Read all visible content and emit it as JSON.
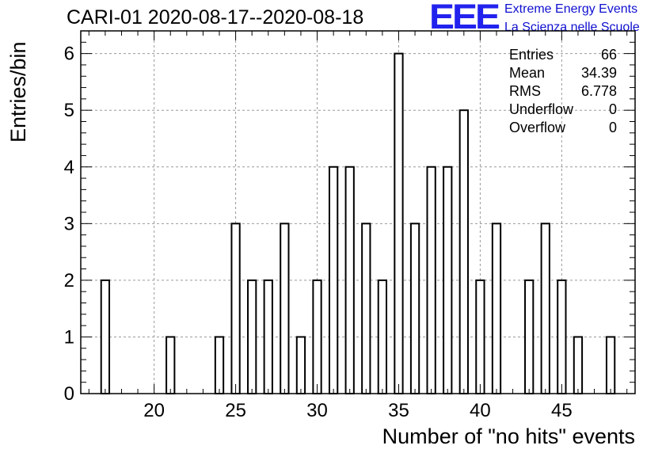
{
  "header": {
    "title": "CARI-01 2020-08-17--2020-08-18",
    "logo_text": "EEE",
    "logo_line1": "Extreme Energy Events",
    "logo_line2": "La Scienza nelle Scuole"
  },
  "stats": {
    "rows": [
      {
        "key": "Entries",
        "value": "66"
      },
      {
        "key": "Mean",
        "value": "34.39"
      },
      {
        "key": "RMS",
        "value": "6.778"
      },
      {
        "key": "Underflow",
        "value": "0"
      },
      {
        "key": "Overflow",
        "value": "0"
      }
    ]
  },
  "chart_data": {
    "type": "bar",
    "title": "CARI-01 2020-08-17--2020-08-18",
    "xlabel": "Number of \"no hits\" events",
    "ylabel": "Entries/bin",
    "xlim": [
      15.5,
      49.5
    ],
    "ylim": [
      0,
      6.4
    ],
    "bin_width": 0.5,
    "grid": true,
    "x_ticks": [
      20,
      25,
      30,
      35,
      40,
      45
    ],
    "y_ticks": [
      0,
      1,
      2,
      3,
      4,
      5,
      6
    ],
    "bins": [
      {
        "x": 17,
        "count": 2
      },
      {
        "x": 21,
        "count": 1
      },
      {
        "x": 24,
        "count": 1
      },
      {
        "x": 25,
        "count": 3
      },
      {
        "x": 26,
        "count": 2
      },
      {
        "x": 27,
        "count": 2
      },
      {
        "x": 28,
        "count": 3
      },
      {
        "x": 29,
        "count": 1
      },
      {
        "x": 30,
        "count": 2
      },
      {
        "x": 31,
        "count": 4
      },
      {
        "x": 32,
        "count": 4
      },
      {
        "x": 33,
        "count": 3
      },
      {
        "x": 34,
        "count": 2
      },
      {
        "x": 35,
        "count": 6
      },
      {
        "x": 36,
        "count": 3
      },
      {
        "x": 37,
        "count": 4
      },
      {
        "x": 38,
        "count": 4
      },
      {
        "x": 39,
        "count": 5
      },
      {
        "x": 40,
        "count": 2
      },
      {
        "x": 41,
        "count": 3
      },
      {
        "x": 43,
        "count": 2
      },
      {
        "x": 44,
        "count": 3
      },
      {
        "x": 45,
        "count": 2
      },
      {
        "x": 46,
        "count": 1
      },
      {
        "x": 48,
        "count": 1
      }
    ]
  }
}
